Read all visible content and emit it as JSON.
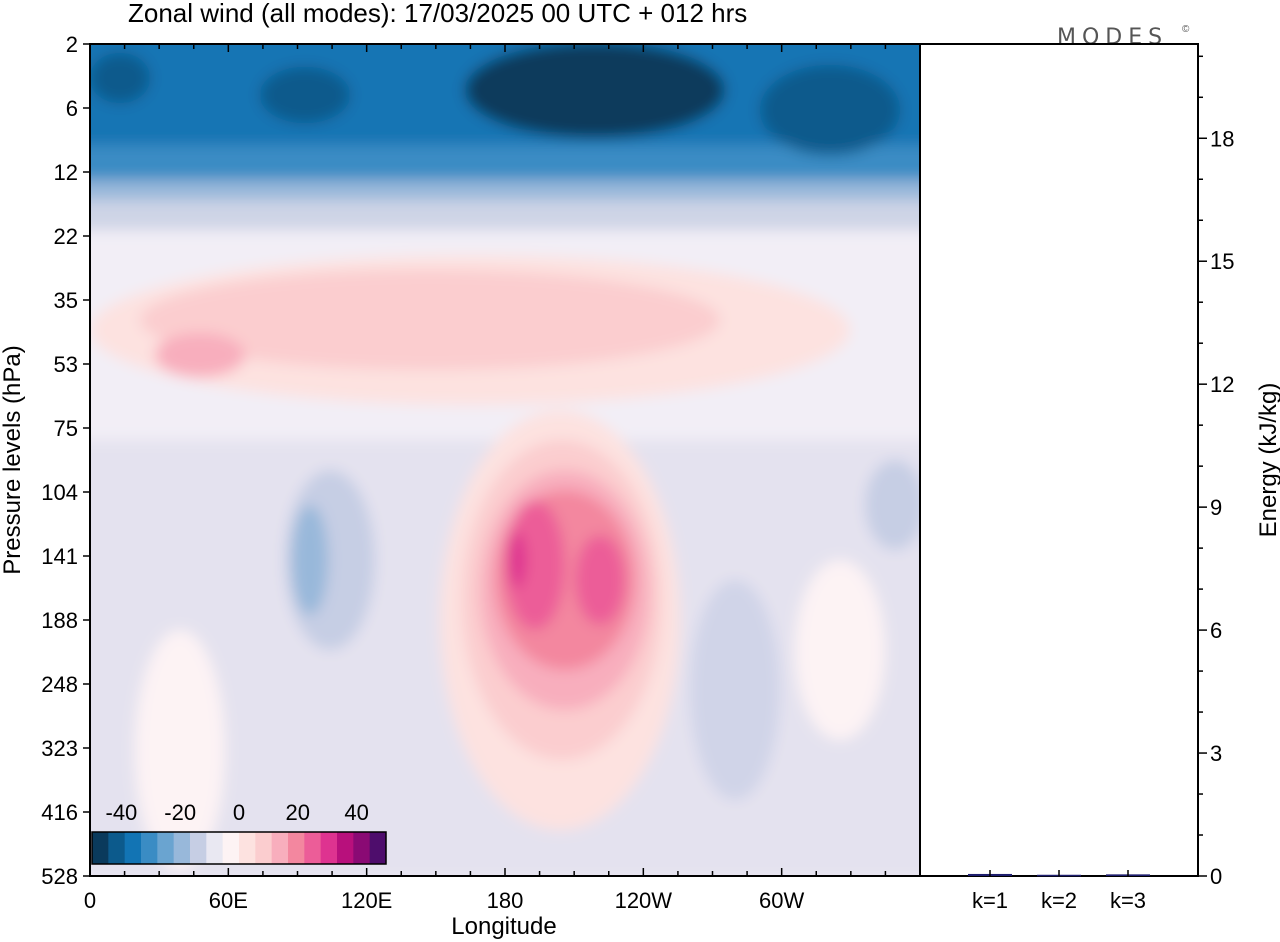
{
  "title": "Zonal wind (all modes):  17/03/2025  00 UTC  + 012 hrs",
  "logo": {
    "text": "MODES",
    "mark": "©"
  },
  "chart_data": [
    {
      "type": "heatmap",
      "variable": "Zonal wind",
      "xlabel": "Longitude",
      "ylabel": "Pressure levels (hPa)",
      "x_ticks": [
        "0",
        "60E",
        "120E",
        "180",
        "120W",
        "60W"
      ],
      "x_tick_degrees": [
        0,
        60,
        120,
        180,
        240,
        300
      ],
      "xlim": [
        0,
        360
      ],
      "y_ticks": [
        "2",
        "6",
        "12",
        "22",
        "35",
        "53",
        "75",
        "104",
        "141",
        "188",
        "248",
        "323",
        "416",
        "528"
      ],
      "y_direction": "top-to-bottom",
      "colorbar": {
        "tick_labels": [
          "-40",
          "-20",
          "0",
          "20",
          "40"
        ],
        "range": [
          -50,
          50
        ],
        "step": 5,
        "colors": [
          "#0a3a5c",
          "#0c5a8c",
          "#1274b4",
          "#3a8cc4",
          "#6aa4d0",
          "#98b8da",
          "#c6cee4",
          "#e9e8f2",
          "#fdf3f4",
          "#fde2e0",
          "#fbcdcf",
          "#f8aebd",
          "#f3879f",
          "#ec5d98",
          "#de3390",
          "#b8107c",
          "#8a0a74",
          "#4e0d6c"
        ]
      },
      "features": [
        {
          "name": "upper-level easterlies",
          "levels_hPa": [
            2,
            15
          ],
          "lon_range": [
            0,
            360
          ],
          "value_approx": -35
        },
        {
          "name": "strongest easterly core",
          "levels_hPa": [
            3,
            9
          ],
          "lon_range": [
            165,
            270
          ],
          "value_approx": -45
        },
        {
          "name": "weak westerly layer",
          "levels_hPa": [
            25,
            75
          ],
          "lon_range": [
            10,
            340
          ],
          "value_approx": 10
        },
        {
          "name": "westerly jet",
          "levels_hPa": [
            85,
            350
          ],
          "lon": 190,
          "value_max_approx": 35
        },
        {
          "name": "weak lower easterlies",
          "levels_hPa": [
            90,
            528
          ],
          "lon_range": [
            60,
            300
          ],
          "value_approx": -5
        }
      ]
    },
    {
      "type": "bar",
      "categories": [
        "k=1",
        "k=2",
        "k=3"
      ],
      "values": [
        0.05,
        0.03,
        0.04
      ],
      "ylabel": "Energy (kJ/kg)",
      "ylim": [
        0,
        20.3
      ],
      "y_ticks": [
        "0",
        "3",
        "6",
        "9",
        "12",
        "15",
        "18"
      ],
      "y_tick_values": [
        0,
        3,
        6,
        9,
        12,
        15,
        18
      ],
      "bar_color": "#1e1e6e"
    }
  ]
}
